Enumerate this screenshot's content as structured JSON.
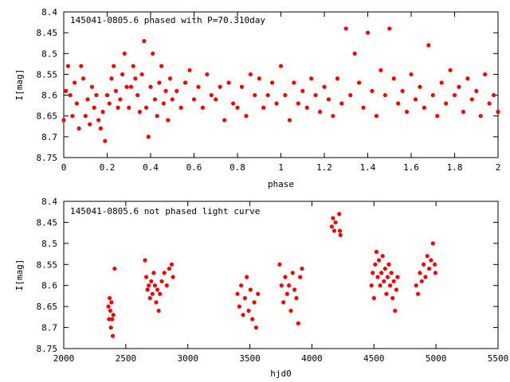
{
  "chart_data": [
    {
      "type": "scatter",
      "title": "145041-0805.6 phased with P=70.310day",
      "xlabel": "phase",
      "ylabel": "I[mag]",
      "xlim": [
        0,
        2
      ],
      "ylim": [
        8.75,
        8.4
      ],
      "y_inverted": true,
      "xticks": [
        0,
        0.2,
        0.4,
        0.6,
        0.8,
        1,
        1.2,
        1.4,
        1.6,
        1.8,
        2
      ],
      "xtick_labels": [
        "0",
        "0.2",
        "0.4",
        "0.6",
        "0.8",
        "1",
        "1.2",
        "1.4",
        "1.6",
        "1.8",
        "2"
      ],
      "yticks": [
        8.4,
        8.45,
        8.5,
        8.55,
        8.6,
        8.65,
        8.7,
        8.75
      ],
      "ytick_labels": [
        "8.4",
        "8.45",
        "8.5",
        "8.55",
        "8.6",
        "8.65",
        "8.7",
        "8.75"
      ],
      "marker_color": "#ff0000",
      "marker": "filled circle",
      "grid": false,
      "points": [
        [
          0.0,
          8.66
        ],
        [
          0.01,
          8.59
        ],
        [
          0.02,
          8.53
        ],
        [
          0.03,
          8.6
        ],
        [
          0.04,
          8.65
        ],
        [
          0.05,
          8.57
        ],
        [
          0.06,
          8.62
        ],
        [
          0.07,
          8.68
        ],
        [
          0.08,
          8.53
        ],
        [
          0.09,
          8.56
        ],
        [
          0.1,
          8.65
        ],
        [
          0.11,
          8.61
        ],
        [
          0.12,
          8.67
        ],
        [
          0.13,
          8.58
        ],
        [
          0.14,
          8.63
        ],
        [
          0.15,
          8.6
        ],
        [
          0.16,
          8.66
        ],
        [
          0.17,
          8.68
        ],
        [
          0.18,
          8.64
        ],
        [
          0.19,
          8.71
        ],
        [
          0.2,
          8.6
        ],
        [
          0.21,
          8.62
        ],
        [
          0.22,
          8.56
        ],
        [
          0.23,
          8.53
        ],
        [
          0.24,
          8.59
        ],
        [
          0.25,
          8.63
        ],
        [
          0.26,
          8.61
        ],
        [
          0.27,
          8.55
        ],
        [
          0.28,
          8.5
        ],
        [
          0.29,
          8.58
        ],
        [
          0.3,
          8.63
        ],
        [
          0.31,
          8.58
        ],
        [
          0.32,
          8.53
        ],
        [
          0.33,
          8.56
        ],
        [
          0.34,
          8.6
        ],
        [
          0.35,
          8.64
        ],
        [
          0.36,
          8.55
        ],
        [
          0.37,
          8.47
        ],
        [
          0.38,
          8.63
        ],
        [
          0.39,
          8.7
        ],
        [
          0.4,
          8.58
        ],
        [
          0.41,
          8.5
        ],
        [
          0.42,
          8.61
        ],
        [
          0.43,
          8.65
        ],
        [
          0.44,
          8.57
        ],
        [
          0.45,
          8.53
        ],
        [
          0.46,
          8.62
        ],
        [
          0.47,
          8.59
        ],
        [
          0.48,
          8.66
        ],
        [
          0.49,
          8.56
        ],
        [
          0.5,
          8.61
        ],
        [
          0.52,
          8.59
        ],
        [
          0.54,
          8.63
        ],
        [
          0.56,
          8.57
        ],
        [
          0.58,
          8.54
        ],
        [
          0.6,
          8.61
        ],
        [
          0.62,
          8.58
        ],
        [
          0.64,
          8.63
        ],
        [
          0.66,
          8.55
        ],
        [
          0.68,
          8.6
        ],
        [
          0.7,
          8.61
        ],
        [
          0.72,
          8.58
        ],
        [
          0.74,
          8.66
        ],
        [
          0.76,
          8.57
        ],
        [
          0.78,
          8.62
        ],
        [
          0.8,
          8.63
        ],
        [
          0.82,
          8.58
        ],
        [
          0.84,
          8.65
        ],
        [
          0.86,
          8.55
        ],
        [
          0.88,
          8.6
        ],
        [
          0.9,
          8.56
        ],
        [
          0.92,
          8.63
        ],
        [
          0.94,
          8.6
        ],
        [
          0.96,
          8.57
        ],
        [
          0.98,
          8.62
        ],
        [
          1.0,
          8.53
        ],
        [
          1.02,
          8.6
        ],
        [
          1.04,
          8.66
        ],
        [
          1.06,
          8.57
        ],
        [
          1.08,
          8.62
        ],
        [
          1.1,
          8.59
        ],
        [
          1.12,
          8.63
        ],
        [
          1.14,
          8.56
        ],
        [
          1.16,
          8.6
        ],
        [
          1.18,
          8.64
        ],
        [
          1.2,
          8.58
        ],
        [
          1.22,
          8.61
        ],
        [
          1.24,
          8.65
        ],
        [
          1.26,
          8.56
        ],
        [
          1.28,
          8.62
        ],
        [
          1.3,
          8.44
        ],
        [
          1.32,
          8.6
        ],
        [
          1.34,
          8.5
        ],
        [
          1.36,
          8.57
        ],
        [
          1.38,
          8.63
        ],
        [
          1.4,
          8.45
        ],
        [
          1.42,
          8.59
        ],
        [
          1.44,
          8.65
        ],
        [
          1.46,
          8.54
        ],
        [
          1.48,
          8.6
        ],
        [
          1.5,
          8.44
        ],
        [
          1.52,
          8.56
        ],
        [
          1.54,
          8.62
        ],
        [
          1.56,
          8.59
        ],
        [
          1.58,
          8.64
        ],
        [
          1.6,
          8.55
        ],
        [
          1.62,
          8.61
        ],
        [
          1.64,
          8.58
        ],
        [
          1.66,
          8.63
        ],
        [
          1.68,
          8.48
        ],
        [
          1.7,
          8.6
        ],
        [
          1.72,
          8.65
        ],
        [
          1.74,
          8.57
        ],
        [
          1.76,
          8.62
        ],
        [
          1.78,
          8.54
        ],
        [
          1.8,
          8.6
        ],
        [
          1.82,
          8.58
        ],
        [
          1.84,
          8.64
        ],
        [
          1.86,
          8.56
        ],
        [
          1.88,
          8.61
        ],
        [
          1.9,
          8.59
        ],
        [
          1.92,
          8.65
        ],
        [
          1.94,
          8.55
        ],
        [
          1.96,
          8.62
        ],
        [
          1.98,
          8.6
        ],
        [
          2.0,
          8.64
        ]
      ]
    },
    {
      "type": "scatter",
      "title": "145041-0805.6 not phased light curve",
      "xlabel": "hjd0",
      "ylabel": "I[mag]",
      "xlim": [
        2000,
        5500
      ],
      "ylim": [
        8.75,
        8.4
      ],
      "y_inverted": true,
      "xticks": [
        2000,
        2500,
        3000,
        3500,
        4000,
        4500,
        5000,
        5500
      ],
      "xtick_labels": [
        "2000",
        "2500",
        "3000",
        "3500",
        "4000",
        "4500",
        "5000",
        "5500"
      ],
      "yticks": [
        8.4,
        8.45,
        8.5,
        8.55,
        8.6,
        8.65,
        8.7,
        8.75
      ],
      "ytick_labels": [
        "8.4",
        "8.45",
        "8.5",
        "8.55",
        "8.6",
        "8.65",
        "8.7",
        "8.75"
      ],
      "marker_color": "#ff0000",
      "marker": "filled circle",
      "grid": false,
      "points": [
        [
          2360,
          8.65
        ],
        [
          2365,
          8.68
        ],
        [
          2370,
          8.63
        ],
        [
          2375,
          8.66
        ],
        [
          2380,
          8.7
        ],
        [
          2385,
          8.64
        ],
        [
          2390,
          8.68
        ],
        [
          2395,
          8.72
        ],
        [
          2400,
          8.67
        ],
        [
          2410,
          8.56
        ],
        [
          2655,
          8.54
        ],
        [
          2665,
          8.58
        ],
        [
          2675,
          8.61
        ],
        [
          2685,
          8.6
        ],
        [
          2695,
          8.63
        ],
        [
          2705,
          8.59
        ],
        [
          2715,
          8.62
        ],
        [
          2725,
          8.57
        ],
        [
          2735,
          8.6
        ],
        [
          2745,
          8.64
        ],
        [
          2755,
          8.61
        ],
        [
          2765,
          8.66
        ],
        [
          2775,
          8.62
        ],
        [
          2790,
          8.59
        ],
        [
          2810,
          8.57
        ],
        [
          2830,
          8.6
        ],
        [
          2850,
          8.56
        ],
        [
          2870,
          8.55
        ],
        [
          2880,
          8.58
        ],
        [
          3400,
          8.62
        ],
        [
          3415,
          8.65
        ],
        [
          3430,
          8.6
        ],
        [
          3445,
          8.67
        ],
        [
          3460,
          8.63
        ],
        [
          3475,
          8.58
        ],
        [
          3490,
          8.66
        ],
        [
          3505,
          8.61
        ],
        [
          3520,
          8.68
        ],
        [
          3535,
          8.64
        ],
        [
          3550,
          8.7
        ],
        [
          3565,
          8.62
        ],
        [
          3740,
          8.55
        ],
        [
          3755,
          8.6
        ],
        [
          3770,
          8.64
        ],
        [
          3785,
          8.58
        ],
        [
          3800,
          8.62
        ],
        [
          3815,
          8.6
        ],
        [
          3830,
          8.66
        ],
        [
          3845,
          8.57
        ],
        [
          3860,
          8.61
        ],
        [
          3875,
          8.63
        ],
        [
          3890,
          8.69
        ],
        [
          3905,
          8.58
        ],
        [
          3920,
          8.56
        ],
        [
          4160,
          8.46
        ],
        [
          4170,
          8.44
        ],
        [
          4180,
          8.47
        ],
        [
          4190,
          8.45
        ],
        [
          4220,
          8.43
        ],
        [
          4225,
          8.47
        ],
        [
          4230,
          8.48
        ],
        [
          4480,
          8.6
        ],
        [
          4490,
          8.57
        ],
        [
          4500,
          8.63
        ],
        [
          4510,
          8.55
        ],
        [
          4520,
          8.52
        ],
        [
          4530,
          8.58
        ],
        [
          4540,
          8.54
        ],
        [
          4550,
          8.6
        ],
        [
          4560,
          8.57
        ],
        [
          4570,
          8.53
        ],
        [
          4580,
          8.59
        ],
        [
          4590,
          8.56
        ],
        [
          4600,
          8.62
        ],
        [
          4610,
          8.58
        ],
        [
          4620,
          8.55
        ],
        [
          4630,
          8.6
        ],
        [
          4640,
          8.57
        ],
        [
          4650,
          8.63
        ],
        [
          4660,
          8.59
        ],
        [
          4670,
          8.66
        ],
        [
          4680,
          8.61
        ],
        [
          4690,
          8.58
        ],
        [
          4840,
          8.6
        ],
        [
          4855,
          8.62
        ],
        [
          4870,
          8.57
        ],
        [
          4885,
          8.59
        ],
        [
          4900,
          8.55
        ],
        [
          4915,
          8.58
        ],
        [
          4930,
          8.53
        ],
        [
          4945,
          8.56
        ],
        [
          4960,
          8.54
        ],
        [
          4975,
          8.5
        ],
        [
          4990,
          8.55
        ],
        [
          4995,
          8.57
        ]
      ]
    }
  ]
}
